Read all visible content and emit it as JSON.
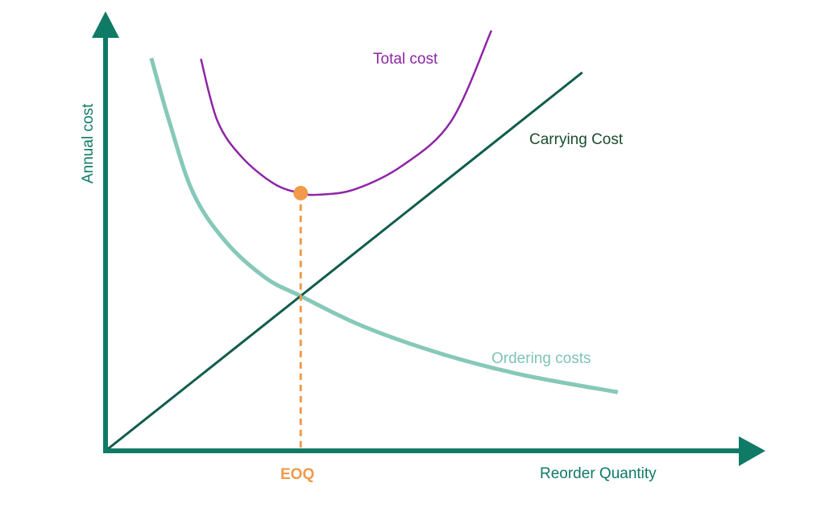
{
  "chart_data": {
    "type": "line",
    "title": "",
    "xlabel": "Reorder Quantity",
    "ylabel": "Annual cost",
    "xlim": [
      0,
      10
    ],
    "ylim": [
      0,
      11.5
    ],
    "grid": false,
    "legend": "none (inline labels)",
    "series": [
      {
        "name": "Total cost",
        "color": "#8e24a6",
        "points": [
          [
            1.5,
            10.36
          ],
          [
            1.76,
            8.72
          ],
          [
            2.14,
            7.77
          ],
          [
            2.65,
            7.06
          ],
          [
            3.07,
            6.81
          ],
          [
            3.35,
            6.77
          ],
          [
            3.92,
            6.91
          ],
          [
            4.68,
            7.55
          ],
          [
            5.44,
            8.72
          ],
          [
            6.07,
            11.11
          ]
        ]
      },
      {
        "name": "Carrying Cost",
        "color": "#0f5c4c",
        "points": [
          [
            0,
            0
          ],
          [
            7.5,
            10
          ]
        ]
      },
      {
        "name": "Ordering costs",
        "color": "#86c8b9",
        "points": [
          [
            0.72,
            10.38
          ],
          [
            1.0,
            8.72
          ],
          [
            1.38,
            6.81
          ],
          [
            1.89,
            5.53
          ],
          [
            2.52,
            4.57
          ],
          [
            3.07,
            4.09
          ],
          [
            4.04,
            3.3
          ],
          [
            5.31,
            2.55
          ],
          [
            6.58,
            2.0
          ],
          [
            8.06,
            1.55
          ]
        ]
      }
    ],
    "annotations": [
      {
        "text": "EOQ",
        "x": 3.07,
        "y": 6.81,
        "color": "#f09a4a"
      }
    ],
    "axis_color": "#0f7a66"
  }
}
